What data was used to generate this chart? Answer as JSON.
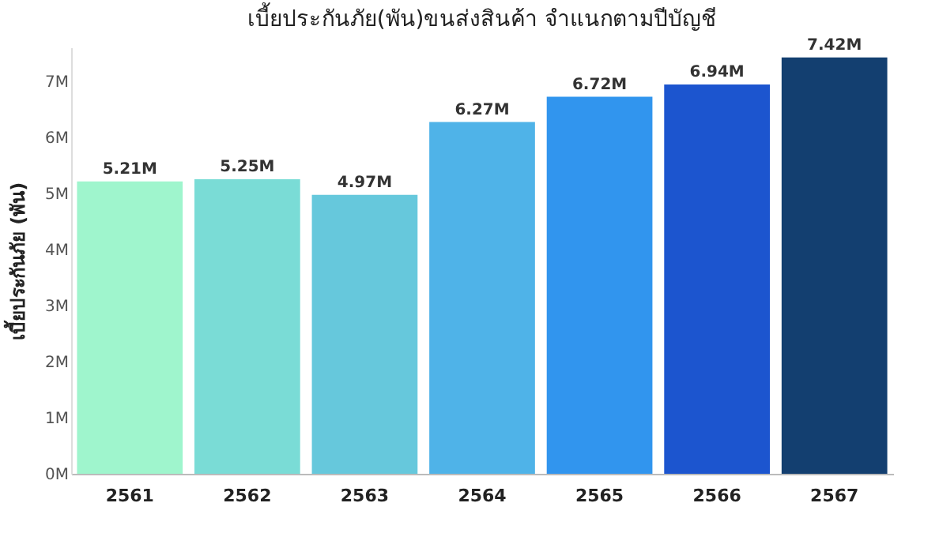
{
  "chart_data": {
    "type": "bar",
    "title": "เบี้ยประกันภัย(พัน)ขนส่งสินค้า จำแนกตามปีบัญชี",
    "ylabel": "เบี้ยประกันภัย (พัน)",
    "categories": [
      "2561",
      "2562",
      "2563",
      "2564",
      "2565",
      "2566",
      "2567"
    ],
    "values": [
      5.21,
      5.25,
      4.97,
      6.27,
      6.72,
      6.94,
      7.42
    ],
    "value_labels": [
      "5.21M",
      "5.25M",
      "4.97M",
      "6.27M",
      "6.72M",
      "6.94M",
      "7.42M"
    ],
    "colors": [
      "#9ff5cd",
      "#7adcd6",
      "#66c8dc",
      "#4fb3e8",
      "#3195ee",
      "#1c55cf",
      "#133f70"
    ],
    "ylim": [
      0,
      7.6
    ],
    "yticks": [
      {
        "value": 0,
        "label": "0M"
      },
      {
        "value": 1,
        "label": "1M"
      },
      {
        "value": 2,
        "label": "2M"
      },
      {
        "value": 3,
        "label": "3M"
      },
      {
        "value": 4,
        "label": "4M"
      },
      {
        "value": 5,
        "label": "5M"
      },
      {
        "value": 6,
        "label": "6M"
      },
      {
        "value": 7,
        "label": "7M"
      }
    ],
    "grid": false
  }
}
